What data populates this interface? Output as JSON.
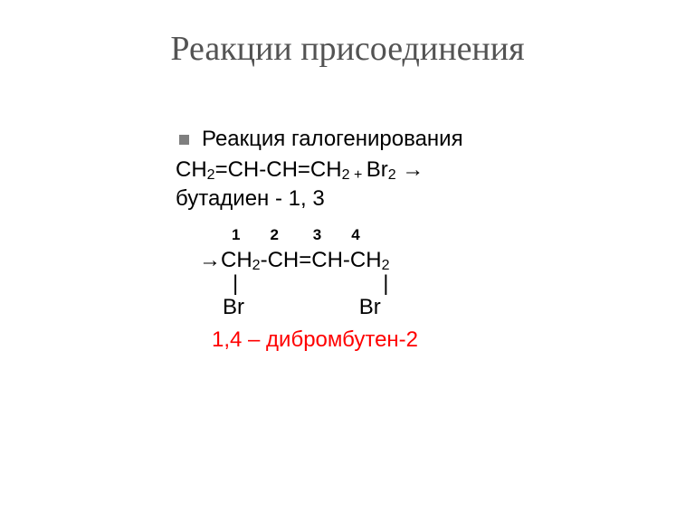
{
  "title": "Реакции присоединения",
  "bullet": "Реакция галогенирования",
  "reaction_left": "СН",
  "reaction_text_parts": {
    "p1": "СН",
    "s1": "2",
    "p2": "=СН-СН=СН",
    "s2": "2 ",
    "plus": "+ ",
    "br": "Br",
    "s3": "2",
    "arrow": " →"
  },
  "reactant_name": "бутадиен - 1, 3",
  "carbon_numbers": "1       2        3       4",
  "product_parts": {
    "arrow": "→",
    "p1": "СН",
    "s1": "2",
    "p2": "-СН=СН-СН",
    "s2": "2"
  },
  "bond_bars": "|                        |",
  "br_atoms": "Br                   Br",
  "product_name": "1,4 – дибромбутен-2",
  "colors": {
    "title": "#535353",
    "text": "#000000",
    "product_name": "#ff0000",
    "bullet": "#7f7f7f",
    "background": "#ffffff"
  }
}
